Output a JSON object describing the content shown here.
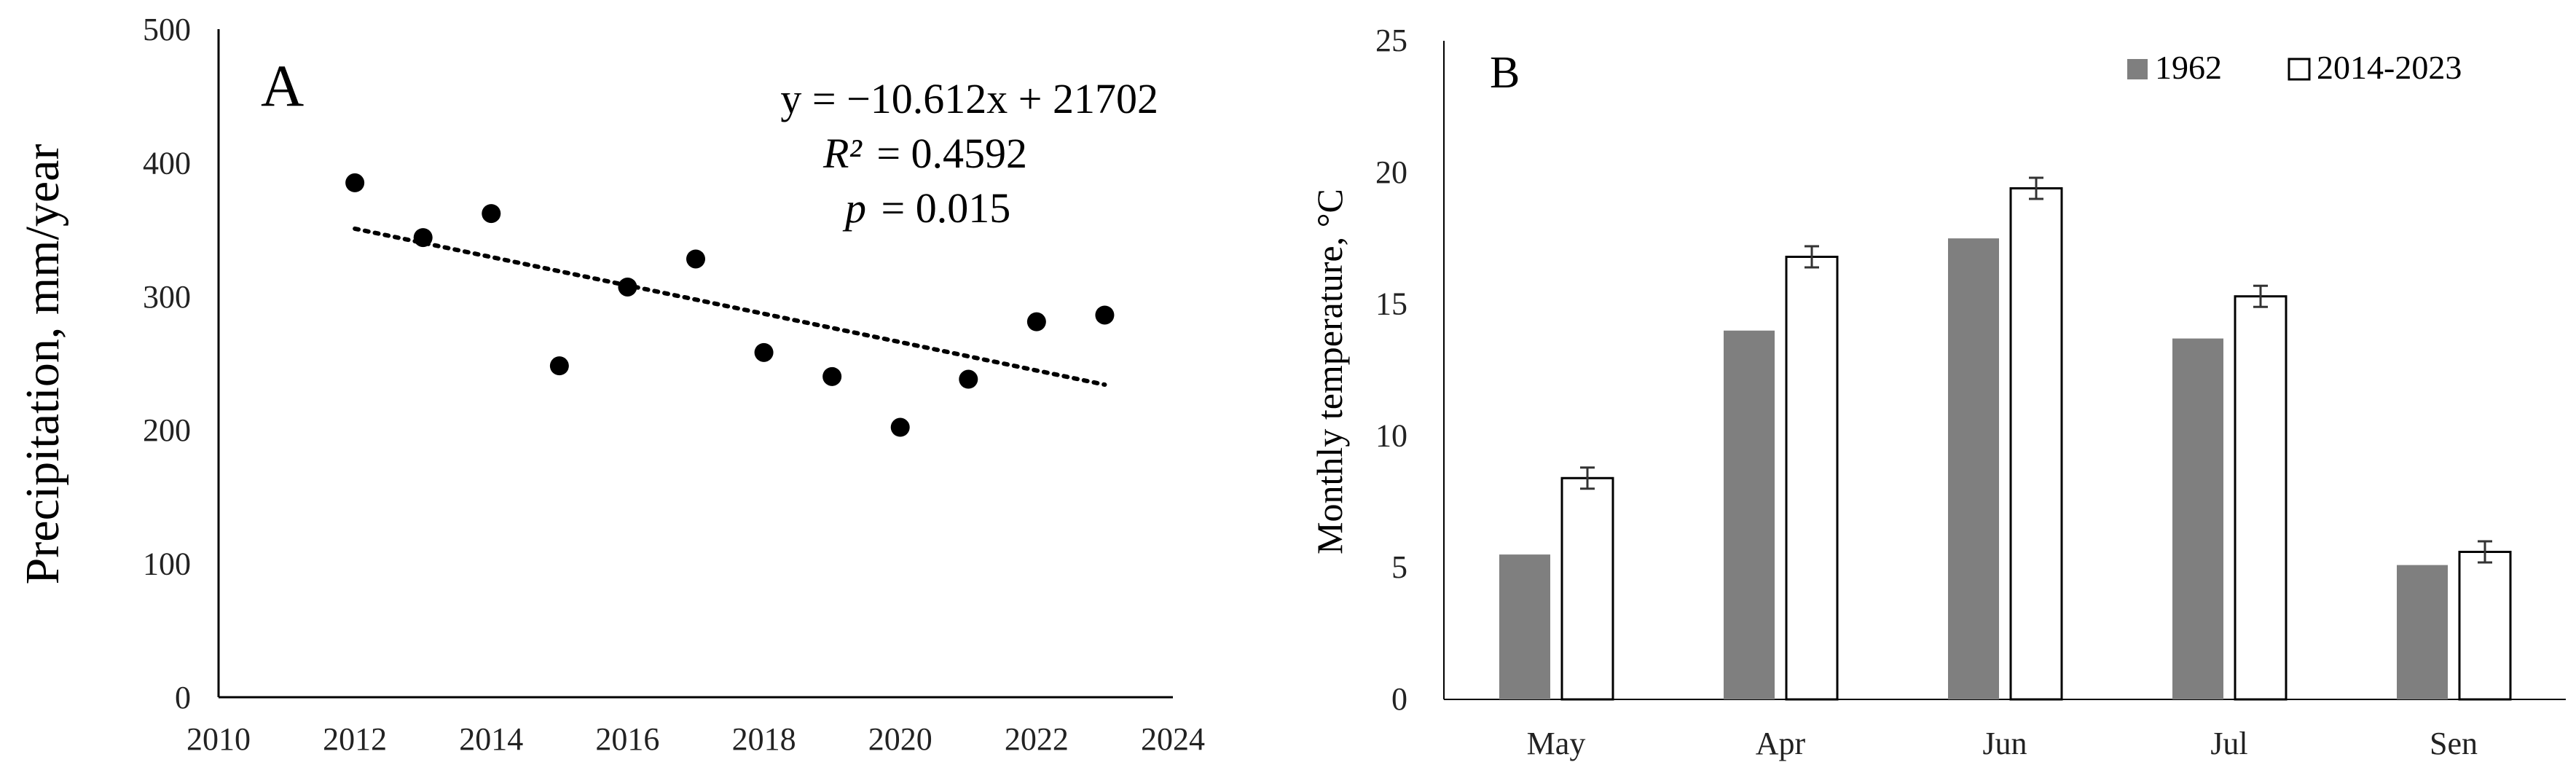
{
  "chart_data": [
    {
      "type": "scatter",
      "panel_label": "A",
      "title": "",
      "xlabel": "",
      "ylabel": "Precipitation,  mm/year",
      "xlim": [
        2010,
        2024
      ],
      "ylim": [
        0,
        500
      ],
      "xticks": [
        2010,
        2012,
        2014,
        2016,
        2018,
        2020,
        2022,
        2024
      ],
      "yticks": [
        0,
        100,
        200,
        300,
        400,
        500
      ],
      "x": [
        2012,
        2013,
        2014,
        2015,
        2016,
        2017,
        2018,
        2019,
        2020,
        2021,
        2022,
        2023
      ],
      "y": [
        385,
        344,
        362,
        248,
        307,
        328,
        258,
        240,
        202,
        238,
        281,
        286
      ],
      "trendline": {
        "slope": -10.612,
        "intercept": 21702,
        "x_range": [
          2012,
          2023
        ]
      },
      "annotations": {
        "equation": "y = −10.612x + 21702",
        "r2_label": "R²",
        "r2_value": "= 0.4592",
        "p_label": "p",
        "p_value": "= 0.015"
      }
    },
    {
      "type": "bar",
      "panel_label": "B",
      "title": "",
      "xlabel": "",
      "ylabel": "Monthly temperature, °C",
      "ylim": [
        0,
        25
      ],
      "yticks": [
        0,
        5,
        10,
        15,
        20,
        25
      ],
      "categories": [
        "May",
        "Apr",
        "Jun",
        "Jul",
        "Sen"
      ],
      "series": [
        {
          "name": "1962",
          "values": [
            5.5,
            14.0,
            17.5,
            13.7,
            5.1
          ],
          "color": "#7f7f7f"
        },
        {
          "name": "2014-2023",
          "values": [
            8.4,
            16.8,
            19.4,
            15.3,
            5.6
          ],
          "errors": [
            0.4,
            0.4,
            0.4,
            0.4,
            0.4
          ],
          "color": "#ffffff"
        }
      ],
      "legend": "top-right"
    }
  ]
}
